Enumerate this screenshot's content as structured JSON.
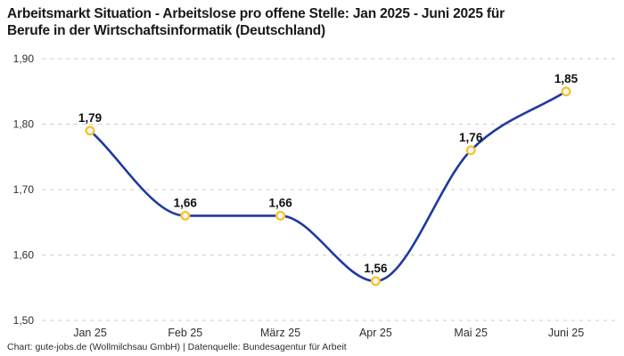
{
  "header": {
    "title_line1": "Arbeitsmarkt Situation - Arbeitslose pro offene Stelle: Jan 2025 - Juni 2025 für",
    "title_line2": "Berufe in der Wirtschaftsinformatik (Deutschland)"
  },
  "footer": {
    "text": "Chart: gute-jobs.de (Wollmilchsau GmbH) | Datenquelle: Bundesagentur für Arbeit"
  },
  "chart_data": {
    "type": "line",
    "title": "Arbeitsmarkt Situation - Arbeitslose pro offene Stelle: Jan 2025 - Juni 2025 für Berufe in der Wirtschaftsinformatik (Deutschland)",
    "categories": [
      "Jan 25",
      "Feb 25",
      "März 25",
      "Apr 25",
      "Mai 25",
      "Juni 25"
    ],
    "values": [
      1.79,
      1.66,
      1.66,
      1.56,
      1.76,
      1.85
    ],
    "value_labels": [
      "1,79",
      "1,66",
      "1,66",
      "1,56",
      "1,76",
      "1,85"
    ],
    "ylim": [
      1.5,
      1.9
    ],
    "yticks": [
      1.5,
      1.6,
      1.7,
      1.8,
      1.9
    ],
    "ytick_labels": [
      "1,50",
      "1,60",
      "1,70",
      "1,80",
      "1,90"
    ],
    "xlabel": "",
    "ylabel": "",
    "legend": "none",
    "grid": "horizontal-dashed",
    "curve": "monotone",
    "colors": {
      "line": "#1e3a9e",
      "marker_ring": "#f9c233",
      "marker_fill": "#ffffff",
      "gridline": "#cccccc",
      "axis_text": "#2e2e2e",
      "point_label": "#111111"
    }
  }
}
